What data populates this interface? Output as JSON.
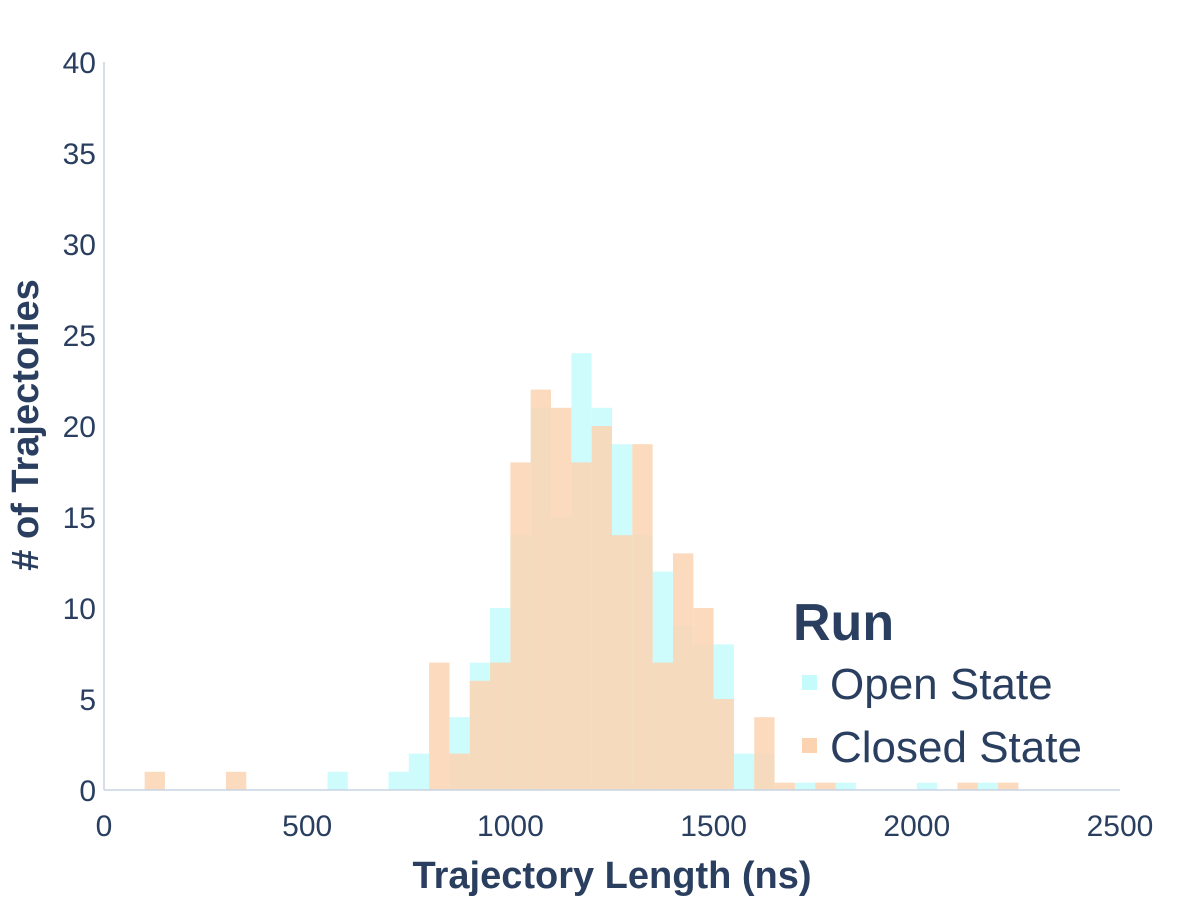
{
  "chart_data": {
    "type": "bar",
    "bar_mode": "overlay",
    "xlabel": "Trajectory Length (ns)",
    "ylabel": "# of Trajectories",
    "xlim": [
      0,
      2500
    ],
    "ylim": [
      0,
      40
    ],
    "bin_width": 50,
    "x_ticks": [
      "0",
      "500",
      "1000",
      "1500",
      "2000",
      "2500"
    ],
    "y_ticks": [
      "0",
      "5",
      "10",
      "15",
      "20",
      "25",
      "30",
      "35",
      "40"
    ],
    "legend": {
      "title": "Run",
      "placement": "bottom-right"
    },
    "series": [
      {
        "name": "Open State",
        "color": "#c6fbfb",
        "bins": [
          {
            "x0": 550,
            "count": 1
          },
          {
            "x0": 700,
            "count": 1
          },
          {
            "x0": 750,
            "count": 2
          },
          {
            "x0": 850,
            "count": 4
          },
          {
            "x0": 900,
            "count": 7
          },
          {
            "x0": 950,
            "count": 10
          },
          {
            "x0": 1000,
            "count": 14
          },
          {
            "x0": 1050,
            "count": 21
          },
          {
            "x0": 1100,
            "count": 15
          },
          {
            "x0": 1150,
            "count": 24
          },
          {
            "x0": 1200,
            "count": 21
          },
          {
            "x0": 1250,
            "count": 19
          },
          {
            "x0": 1300,
            "count": 14
          },
          {
            "x0": 1350,
            "count": 12
          },
          {
            "x0": 1400,
            "count": 9
          },
          {
            "x0": 1450,
            "count": 8
          },
          {
            "x0": 1500,
            "count": 8
          },
          {
            "x0": 1550,
            "count": 2
          },
          {
            "x0": 1600,
            "count": 2
          },
          {
            "x0": 1700,
            "count": 0.4
          },
          {
            "x0": 1800,
            "count": 0.4
          },
          {
            "x0": 2000,
            "count": 0.4
          },
          {
            "x0": 2150,
            "count": 0.4
          }
        ]
      },
      {
        "name": "Closed State",
        "color": "#fbd3b1",
        "bins": [
          {
            "x0": 100,
            "count": 1
          },
          {
            "x0": 300,
            "count": 1
          },
          {
            "x0": 800,
            "count": 7
          },
          {
            "x0": 850,
            "count": 2
          },
          {
            "x0": 900,
            "count": 6
          },
          {
            "x0": 950,
            "count": 7
          },
          {
            "x0": 1000,
            "count": 18
          },
          {
            "x0": 1050,
            "count": 22
          },
          {
            "x0": 1100,
            "count": 21
          },
          {
            "x0": 1150,
            "count": 18
          },
          {
            "x0": 1200,
            "count": 20
          },
          {
            "x0": 1250,
            "count": 14
          },
          {
            "x0": 1300,
            "count": 19
          },
          {
            "x0": 1350,
            "count": 7
          },
          {
            "x0": 1400,
            "count": 13
          },
          {
            "x0": 1450,
            "count": 10
          },
          {
            "x0": 1500,
            "count": 5
          },
          {
            "x0": 1600,
            "count": 4
          },
          {
            "x0": 1650,
            "count": 0.4
          },
          {
            "x0": 1750,
            "count": 0.4
          },
          {
            "x0": 2100,
            "count": 0.4
          },
          {
            "x0": 2200,
            "count": 0.4
          }
        ]
      }
    ]
  }
}
